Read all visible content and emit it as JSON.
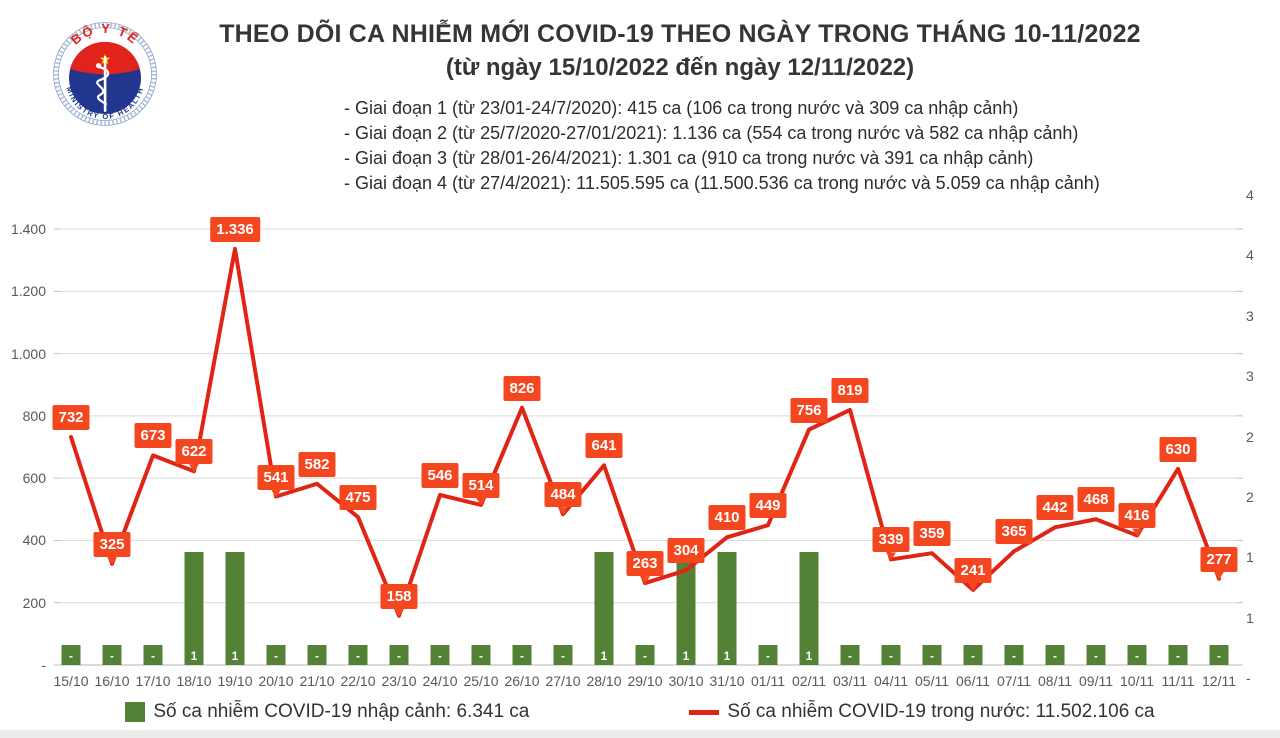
{
  "logo": {
    "top_text": "BỘ Y TẾ",
    "bottom_text": "MINISTRY OF HEALTH"
  },
  "header": {
    "title": "THEO DÕI CA NHIỄM MỚI COVID-19 THEO NGÀY TRONG THÁNG 10-11/2022",
    "subtitle": "(từ ngày 15/10/2022 đến ngày 12/11/2022)",
    "phases": [
      "- Giai đoạn 1 (từ 23/01-24/7/2020): 415 ca (106 ca trong nước và 309 ca nhập cảnh)",
      "- Giai đoạn 2 (từ 25/7/2020-27/01/2021): 1.136 ca (554 ca trong nước và 582 ca nhập cảnh)",
      "- Giai đoạn 3 (từ 28/01-26/4/2021): 1.301 ca (910 ca trong nước và 391 ca nhập cảnh)",
      "- Giai đoạn 4 (từ 27/4/2021): 11.505.595 ca (11.500.536 ca trong nước và 5.059 ca nhập cảnh)"
    ]
  },
  "legend": [
    {
      "label": "Số ca nhiễm COVID-19 nhập cảnh: 6.341 ca",
      "color": "#538135",
      "type": "bar"
    },
    {
      "label": "Số ca nhiễm COVID-19 trong nước: 11.502.106 ca",
      "color": "#e02416",
      "type": "line"
    }
  ],
  "colors": {
    "line": "#e02416",
    "label_box": "#f4461f",
    "bar": "#538135",
    "gridline": "#d9d9d9",
    "axis": "#bfbfbf",
    "axis_text": "#595959"
  },
  "chart_data": {
    "type": "line",
    "title": "Daily new COVID-19 cases 15/10/2022 - 12/11/2022",
    "categories": [
      "15/10",
      "16/10",
      "17/10",
      "18/10",
      "19/10",
      "20/10",
      "21/10",
      "22/10",
      "23/10",
      "24/10",
      "25/10",
      "26/10",
      "27/10",
      "28/10",
      "29/10",
      "30/10",
      "31/10",
      "01/11",
      "02/11",
      "03/11",
      "04/11",
      "05/11",
      "06/11",
      "07/11",
      "08/11",
      "09/11",
      "10/11",
      "11/11",
      "12/11"
    ],
    "series": [
      {
        "name": "Số ca nhiễm COVID-19 trong nước",
        "type": "line",
        "axis": "left",
        "values": [
          732,
          325,
          673,
          622,
          1336,
          541,
          582,
          475,
          158,
          546,
          514,
          826,
          484,
          641,
          263,
          304,
          410,
          449,
          756,
          819,
          339,
          359,
          241,
          365,
          442,
          468,
          416,
          630,
          277
        ]
      },
      {
        "name": "Số ca nhiễm COVID-19 nhập cảnh",
        "type": "bar",
        "axis": "right",
        "values": [
          0,
          0,
          0,
          1,
          1,
          0,
          0,
          0,
          0,
          0,
          0,
          0,
          0,
          1,
          0,
          1,
          1,
          0,
          1,
          0,
          0,
          0,
          0,
          0,
          0,
          0,
          0,
          0,
          0
        ],
        "zero_display": "-"
      }
    ],
    "left_axis": {
      "min": 0,
      "max": 1400,
      "tick_labels_top_down": [
        "1.400",
        "1.200",
        "1.000",
        "800",
        "600",
        "400",
        "200",
        "-"
      ]
    },
    "right_axis": {
      "tick_labels_top_down": [
        "4",
        "4",
        "3",
        "3",
        "2",
        "2",
        "1",
        "1",
        "-"
      ]
    },
    "grid": "horizontal",
    "legend_position": "bottom"
  }
}
